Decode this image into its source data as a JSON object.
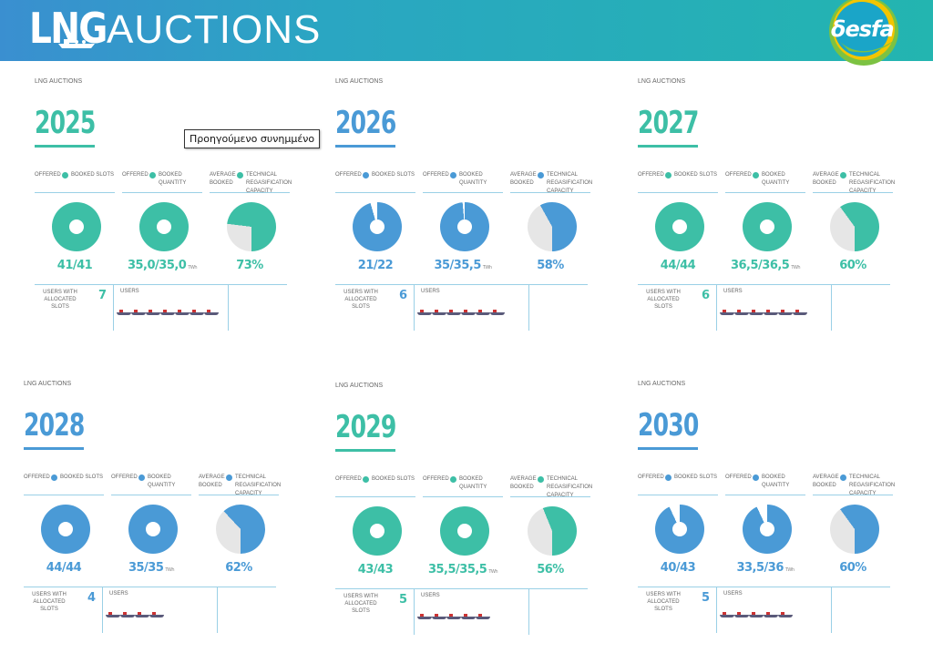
{
  "header": {
    "logo_text": "LNG",
    "title": "AUCTIONS",
    "brand": "δesfa"
  },
  "tooltip": "Προηγούμενο συνημμένο",
  "labels": {
    "kicker": "LNG AUCTIONS",
    "offered": "OFFERED",
    "booked_slots": "BOOKED SLOTS",
    "booked_quantity": "BOOKED QUANTITY",
    "average_booked": "AVERAGE BOOKED",
    "technical_capacity": "TECHNICAL REGASIFICATION CAPACITY",
    "users_with_slots": "USERS WITH ALLOCATED SLOTS",
    "users": "USERS",
    "unit": "TWh"
  },
  "colors": {
    "teal": "#3dbfa6",
    "blue": "#4a9ad6",
    "grey": "#e6e6e6"
  },
  "panels": [
    {
      "year": "2025",
      "theme": "teal",
      "slots": "41/41",
      "slots_frac": 1.0,
      "quantity": "35,0/35,0",
      "quantity_frac": 1.0,
      "capacity": "73%",
      "capacity_frac": 0.73,
      "users": "7",
      "ships": 7
    },
    {
      "year": "2026",
      "theme": "blue",
      "slots": "21/22",
      "slots_frac": 0.955,
      "quantity": "35/35,5",
      "quantity_frac": 0.986,
      "capacity": "58%",
      "capacity_frac": 0.58,
      "users": "6",
      "ships": 6
    },
    {
      "year": "2027",
      "theme": "teal",
      "slots": "44/44",
      "slots_frac": 1.0,
      "quantity": "36,5/36,5",
      "quantity_frac": 1.0,
      "capacity": "60%",
      "capacity_frac": 0.6,
      "users": "6",
      "ships": 6
    },
    {
      "year": "2028",
      "theme": "blue",
      "slots": "44/44",
      "slots_frac": 1.0,
      "quantity": "35/35",
      "quantity_frac": 1.0,
      "capacity": "62%",
      "capacity_frac": 0.62,
      "users": "4",
      "ships": 4
    },
    {
      "year": "2029",
      "theme": "teal",
      "slots": "43/43",
      "slots_frac": 1.0,
      "quantity": "35,5/35,5",
      "quantity_frac": 1.0,
      "capacity": "56%",
      "capacity_frac": 0.56,
      "users": "5",
      "ships": 5
    },
    {
      "year": "2030",
      "theme": "blue",
      "slots": "40/43",
      "slots_frac": 0.93,
      "quantity": "33,5/36",
      "quantity_frac": 0.93,
      "capacity": "60%",
      "capacity_frac": 0.6,
      "users": "5",
      "ships": 5
    }
  ]
}
